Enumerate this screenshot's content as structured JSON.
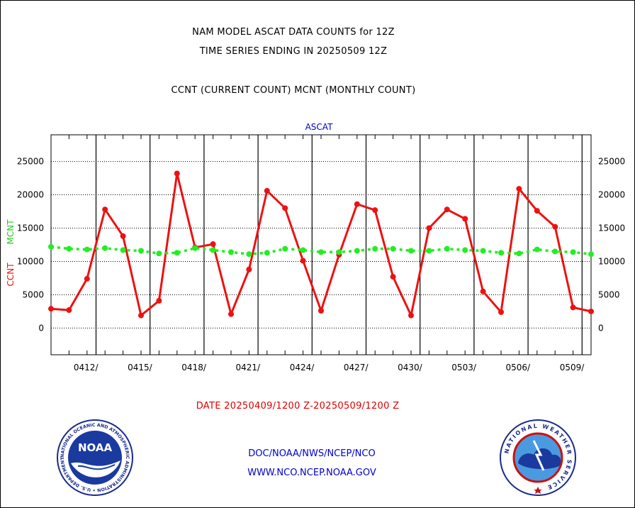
{
  "header": {
    "line1": "NAM MODEL ASCAT DATA COUNTS for 12Z",
    "line2": "TIME SERIES ENDING IN 20250509 12Z",
    "line3": "CCNT (CURRENT COUNT) MCNT (MONTHLY COUNT)"
  },
  "footer": {
    "date_range": "DATE 20250409/1200 Z-20250509/1200 Z",
    "link1": "DOC/NOAA/NWS/NCEP/NCO",
    "link2": "WWW.NCO.NCEP.NOAA.GOV"
  },
  "logos": {
    "noaa_text": "NOAA",
    "noaa_ring": "NATIONAL OCEANIC AND ATMOSPHERIC ADMINISTRATION • U.S. DEPARTMENT OF COMMERCE •",
    "nws_ring": "NATIONAL WEATHER SERVICE"
  },
  "chart_data": {
    "type": "line",
    "title": "ASCAT",
    "ylabel_ccnt": "CCNT",
    "ylabel_mcnt": "MCNT",
    "ylim": [
      -4000,
      29000
    ],
    "yticks": [
      0,
      5000,
      10000,
      15000,
      20000,
      25000
    ],
    "x_range_days": [
      0,
      30
    ],
    "x_tick_labels": [
      "0412/",
      "0415/",
      "0418/",
      "0421/",
      "0424/",
      "0427/",
      "0430/",
      "0503/",
      "0506/",
      "0509/"
    ],
    "x_tick_days": [
      2.5,
      5.5,
      8.5,
      11.5,
      14.5,
      17.5,
      20.5,
      23.5,
      26.5,
      29.5
    ],
    "grid": true,
    "colors": {
      "ccnt": "#ee1111",
      "mcnt": "#22ee22",
      "ccnt_label": "#ee1111",
      "mcnt_label": "#22cc22"
    },
    "series": [
      {
        "name": "CCNT",
        "x": [
          0,
          1,
          2,
          3,
          4,
          5,
          6,
          7,
          8,
          9,
          10,
          11,
          12,
          13,
          14,
          15,
          16,
          17,
          18,
          19,
          20,
          21,
          22,
          23,
          24,
          25,
          26,
          27,
          28,
          29,
          30
        ],
        "values": [
          2900,
          2700,
          7400,
          17800,
          13800,
          1900,
          4100,
          23200,
          12100,
          12600,
          2100,
          8800,
          20600,
          18000,
          10100,
          2600,
          11000,
          18600,
          17700,
          7700,
          1900,
          15000,
          17800,
          16400,
          5500,
          2400,
          20900,
          17600,
          15200,
          3100,
          2500
        ]
      },
      {
        "name": "MCNT",
        "x": [
          0,
          1,
          2,
          3,
          4,
          5,
          6,
          7,
          8,
          9,
          10,
          11,
          12,
          13,
          14,
          15,
          16,
          17,
          18,
          19,
          20,
          21,
          22,
          23,
          24,
          25,
          26,
          27,
          28,
          29,
          30
        ],
        "values": [
          12200,
          11900,
          11800,
          12000,
          11700,
          11600,
          11200,
          11300,
          12000,
          11700,
          11400,
          11100,
          11300,
          11900,
          11700,
          11400,
          11400,
          11600,
          11900,
          11900,
          11600,
          11600,
          11900,
          11700,
          11600,
          11300,
          11200,
          11800,
          11500,
          11400,
          11100
        ]
      }
    ]
  }
}
